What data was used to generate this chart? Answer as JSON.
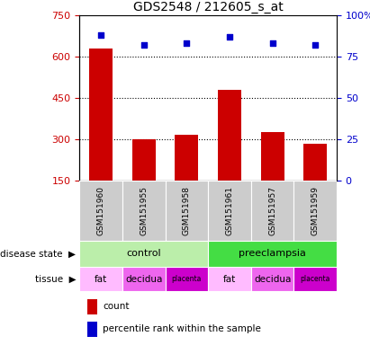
{
  "title": "GDS2548 / 212605_s_at",
  "samples": [
    "GSM151960",
    "GSM151955",
    "GSM151958",
    "GSM151961",
    "GSM151957",
    "GSM151959"
  ],
  "counts": [
    630,
    300,
    315,
    480,
    325,
    285
  ],
  "percentile_ranks": [
    88,
    82,
    83,
    87,
    83,
    82
  ],
  "bar_color": "#cc0000",
  "dot_color": "#0000cc",
  "ylim_left": [
    150,
    750
  ],
  "ylim_right": [
    0,
    100
  ],
  "yticks_left": [
    150,
    300,
    450,
    600,
    750
  ],
  "yticks_right": [
    0,
    25,
    50,
    75,
    100
  ],
  "ytick_labels_right": [
    "0",
    "25",
    "50",
    "75",
    "100%"
  ],
  "grid_yticks": [
    300,
    450,
    600
  ],
  "disease_groups": [
    {
      "label": "control",
      "start": 0,
      "end": 3,
      "color": "#bbeeaa"
    },
    {
      "label": "preeclampsia",
      "start": 3,
      "end": 6,
      "color": "#44dd44"
    }
  ],
  "tissue": [
    "fat",
    "decidua",
    "placenta",
    "fat",
    "decidua",
    "placenta"
  ],
  "tissue_colors": [
    "#ffbbff",
    "#ee66ee",
    "#cc00cc",
    "#ffbbff",
    "#ee66ee",
    "#cc00cc"
  ],
  "sample_box_color": "#cccccc",
  "legend_count_color": "#cc0000",
  "legend_pct_color": "#0000cc",
  "left_label_disease": "disease state",
  "left_label_tissue": "tissue",
  "arrow_color": "#888888"
}
